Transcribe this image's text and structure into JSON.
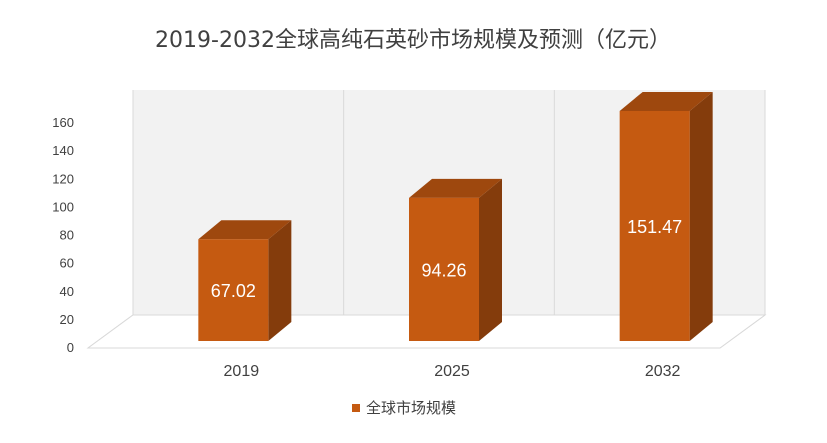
{
  "chart_data": {
    "type": "bar",
    "title": "2019-2032全球高纯石英砂市场规模及预测（亿元）",
    "categories": [
      "2019",
      "2025",
      "2032"
    ],
    "series": [
      {
        "name": "全球市场规模",
        "values": [
          67.02,
          94.26,
          151.47
        ],
        "data_labels": [
          "67.02",
          "94.26",
          "151.47"
        ]
      }
    ],
    "yticks": [
      "0",
      "20",
      "40",
      "60",
      "80",
      "100",
      "120",
      "140",
      "160"
    ],
    "ylim": [
      0,
      160
    ],
    "grid": true,
    "legend_position": "bottom",
    "style_3d": true,
    "colors": {
      "front": "#c55a11",
      "side": "#843c0c",
      "top": "#9e480e",
      "wall": "#f2f2f2"
    }
  }
}
